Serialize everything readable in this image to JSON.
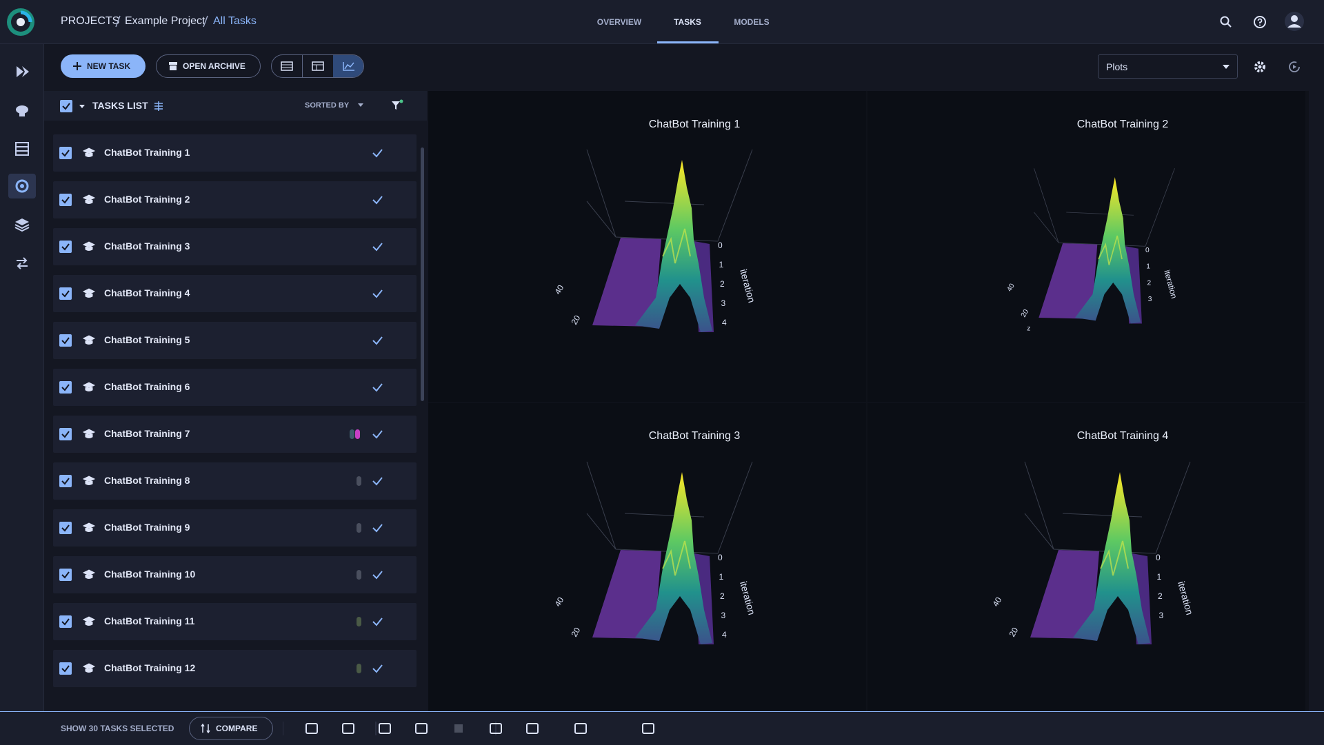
{
  "breadcrumb": [
    "PROJECTS",
    "Example Project",
    "All Tasks"
  ],
  "tabs": [
    "OVERVIEW",
    "TASKS",
    "MODELS"
  ],
  "toolbar": {
    "new_task": "NEW TASK",
    "open_archive": "OPEN ARCHIVE",
    "view_select": "Plots"
  },
  "tasks_list": {
    "title": "TASKS LIST",
    "sort": "SORTED BY",
    "tasks": [
      "ChatBot Training 1",
      "ChatBot Training 2",
      "ChatBot Training 3",
      "ChatBot Training 4",
      "ChatBot Training 5",
      "ChatBot Training 6",
      "ChatBot Training 7",
      "ChatBot Training 8",
      "ChatBot Training 9",
      "ChatBot Training 10",
      "ChatBot Training 11",
      "ChatBot Training 12"
    ]
  },
  "plots": [
    {
      "title": "ChatBot Training 1",
      "axis_label": "iteration",
      "ticks": [
        "0",
        "1",
        "2",
        "3",
        "4"
      ],
      "side_ticks": [
        "40",
        "20"
      ]
    },
    {
      "title": "ChatBot Training 2",
      "axis_label": "iteration",
      "ticks": [
        "0",
        "1",
        "2",
        "3"
      ],
      "side_ticks": [
        "40",
        "20"
      ],
      "z_label": "z"
    },
    {
      "title": "ChatBot Training 3",
      "axis_label": "iteration",
      "ticks": [
        "0",
        "1",
        "2",
        "3",
        "4"
      ],
      "side_ticks": [
        "40",
        "20"
      ]
    },
    {
      "title": "ChatBot Training 4",
      "axis_label": "iteration",
      "ticks": [
        "0",
        "1",
        "2",
        "3"
      ],
      "side_ticks": [
        "40",
        "20"
      ]
    }
  ],
  "footer": {
    "selection": "SHOW 30 TASKS SELECTED",
    "compare": "COMPARE"
  }
}
